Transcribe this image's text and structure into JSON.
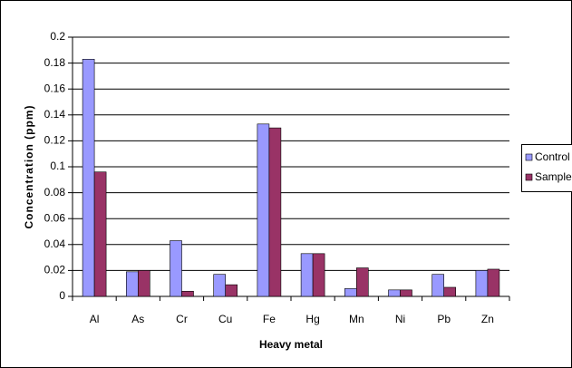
{
  "chart_data": {
    "type": "bar",
    "x_label": "Heavy metal",
    "y_label": "Concentration (ppm)",
    "categories": [
      "Al",
      "As",
      "Cr",
      "Cu",
      "Fe",
      "Hg",
      "Mn",
      "Ni",
      "Pb",
      "Zn"
    ],
    "series": [
      {
        "name": "Control",
        "color": "#9999ff",
        "values": [
          0.183,
          0.019,
          0.043,
          0.017,
          0.133,
          0.033,
          0.006,
          0.005,
          0.017,
          0.02
        ]
      },
      {
        "name": "Sample",
        "color": "#993366",
        "values": [
          0.096,
          0.02,
          0.004,
          0.009,
          0.13,
          0.033,
          0.022,
          0.005,
          0.007,
          0.021
        ]
      }
    ],
    "ylim": [
      0,
      0.2
    ],
    "yticks": [
      0,
      0.02,
      0.04,
      0.06,
      0.08,
      0.1,
      0.12,
      0.14,
      0.16,
      0.18,
      0.2
    ],
    "grid": true,
    "legend": "right"
  }
}
